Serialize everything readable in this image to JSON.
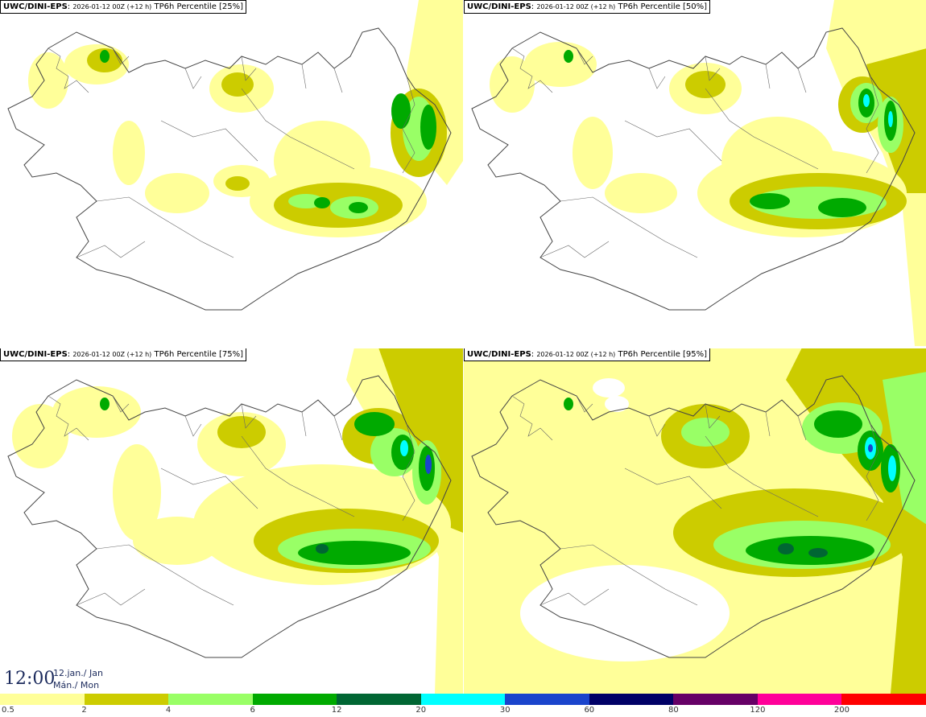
{
  "panels": [
    {
      "model": "UWC/DINI-EPS",
      "run": "2026-01-12 00Z (+12 h)",
      "field": "TP6h Percentile [25%]"
    },
    {
      "model": "UWC/DINI-EPS",
      "run": "2026-01-12 00Z (+12 h)",
      "field": "TP6h Percentile [50%]"
    },
    {
      "model": "UWC/DINI-EPS",
      "run": "2026-01-12 00Z (+12 h)",
      "field": "TP6h Percentile [75%]"
    },
    {
      "model": "UWC/DINI-EPS",
      "run": "2026-01-12 00Z (+12 h)",
      "field": "TP6h Percentile [95%]"
    }
  ],
  "valid_time": {
    "time": "12:00",
    "date_line1": "12.jan./ Jan",
    "date_line2": "Mán./ Mon"
  },
  "legend": {
    "colors": [
      "#ffff99",
      "#cccc00",
      "#99ff66",
      "#00aa00",
      "#006633",
      "#00ffff",
      "#1a44cc",
      "#000066",
      "#660066",
      "#ff0099",
      "#ff0000"
    ],
    "ticks": [
      "0.5",
      "2",
      "4",
      "6",
      "12",
      "20",
      "30",
      "60",
      "80",
      "120",
      "200"
    ]
  }
}
